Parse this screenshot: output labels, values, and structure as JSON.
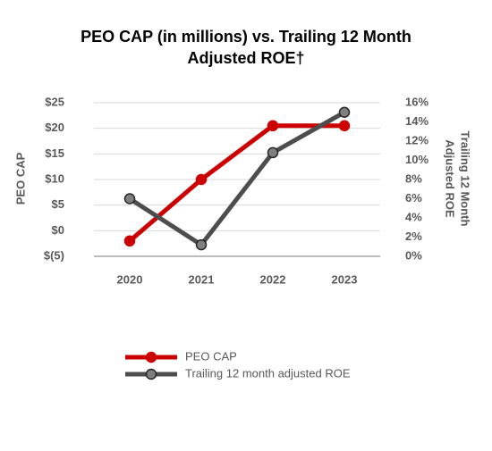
{
  "chart_data": {
    "type": "line",
    "title": [
      "PEO CAP (in millions) vs. Trailing 12 Month",
      "Adjusted ROE†"
    ],
    "y_label": "PEO CAP",
    "y2_label": [
      "Trailing 12 Month",
      "Adjusted ROE"
    ],
    "categories": [
      "2020",
      "2021",
      "2022",
      "2023"
    ],
    "series": [
      {
        "name": "PEO CAP",
        "color": "#cc0000",
        "values": [
          -2,
          10,
          20.5,
          20.5
        ]
      },
      {
        "name": "Trailing 12 month adjusted ROE",
        "color": "#4d4d4d",
        "axis": "y2",
        "values": [
          6,
          1.2,
          10.8,
          15
        ]
      }
    ],
    "ylim": [
      -5,
      25
    ],
    "yticks": [
      {
        "value": -5,
        "label": "$(5)"
      },
      {
        "value": 0,
        "label": "$0"
      },
      {
        "value": 5,
        "label": "$5"
      },
      {
        "value": 10,
        "label": "$10"
      },
      {
        "value": 15,
        "label": "$15"
      },
      {
        "value": 20,
        "label": "$20"
      },
      {
        "value": 25,
        "label": "$25"
      }
    ],
    "y2lim": [
      0,
      16
    ],
    "y2ticks": [
      {
        "value": 0,
        "label": "0%"
      },
      {
        "value": 2,
        "label": "2%"
      },
      {
        "value": 4,
        "label": "4%"
      },
      {
        "value": 6,
        "label": "6%"
      },
      {
        "value": 8,
        "label": "8%"
      },
      {
        "value": 10,
        "label": "10%"
      },
      {
        "value": 12,
        "label": "12%"
      },
      {
        "value": 14,
        "label": "14%"
      },
      {
        "value": 16,
        "label": "16%"
      }
    ],
    "grid": true
  }
}
